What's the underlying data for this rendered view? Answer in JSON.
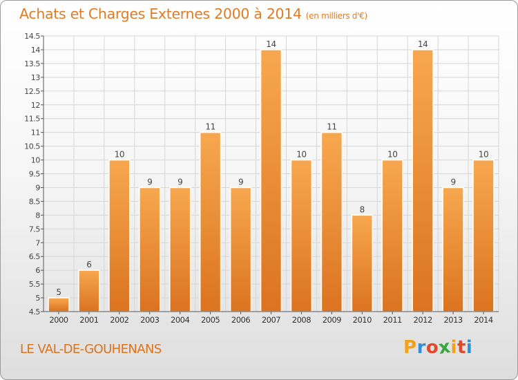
{
  "title": "Achats et Charges Externes 2000 à 2014",
  "subtitle": "(en milliers d'€)",
  "commune": "LE VAL-DE-GOUHENANS",
  "brand": {
    "letters": [
      "P",
      "r",
      "o",
      "x",
      "i",
      "t",
      "i"
    ],
    "colors": [
      "#f4a11a",
      "#2f8fd8",
      "#e04a2a",
      "#3aa641",
      "#f4a11a",
      "#e04a2a",
      "#2f8fd8"
    ]
  },
  "colors": {
    "bar_top": "#f7a84f",
    "bar_bottom": "#db7320",
    "accent": "#e07b25"
  },
  "chart_data": {
    "type": "bar",
    "categories": [
      "2000",
      "2001",
      "2002",
      "2003",
      "2004",
      "2005",
      "2006",
      "2007",
      "2008",
      "2009",
      "2010",
      "2011",
      "2012",
      "2013",
      "2014"
    ],
    "values": [
      5,
      6,
      10,
      9,
      9,
      11,
      9,
      14,
      10,
      11,
      8,
      10,
      14,
      9,
      10
    ],
    "data_labels": [
      "5",
      "6",
      "10",
      "9",
      "9",
      "11",
      "9",
      "14",
      "10",
      "11",
      "8",
      "10",
      "14",
      "9",
      "10"
    ],
    "ylim": [
      4.5,
      14.5
    ],
    "yticks": [
      "4.5",
      "5",
      "5.5",
      "6",
      "6.5",
      "7",
      "7.5",
      "8",
      "8.5",
      "9",
      "9.5",
      "10",
      "10.5",
      "11",
      "11.5",
      "12",
      "12.5",
      "13",
      "13.5",
      "14",
      "14.5"
    ],
    "grid": true
  }
}
